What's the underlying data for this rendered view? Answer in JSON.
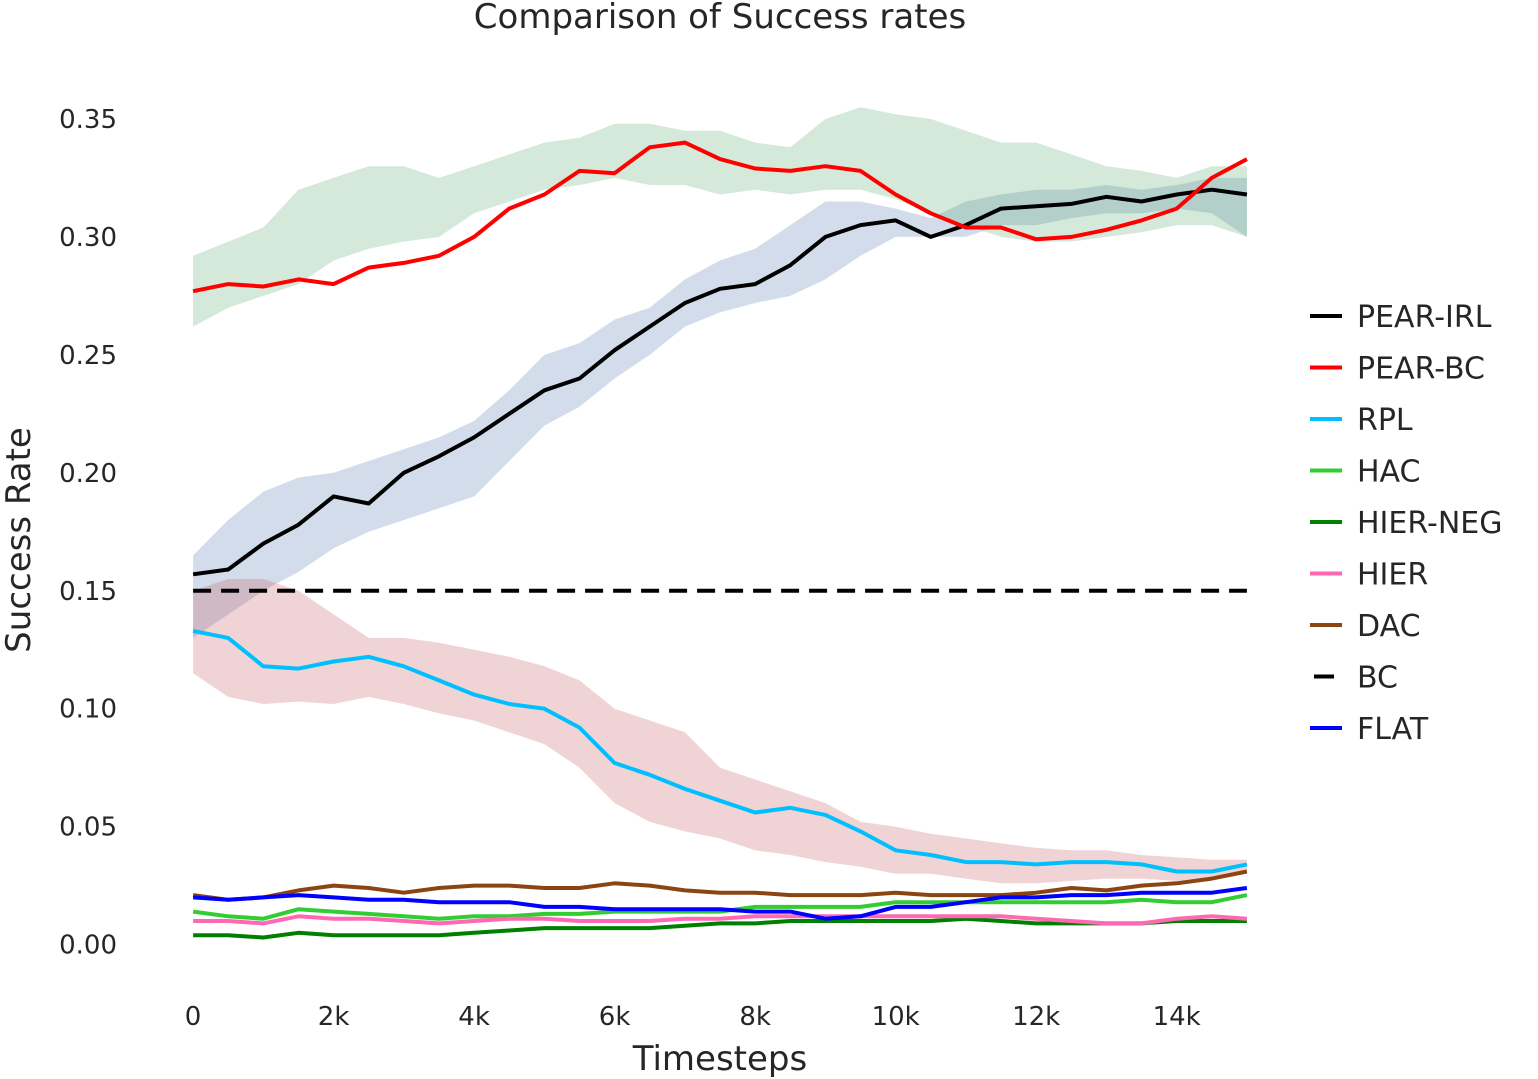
{
  "chart_data": {
    "type": "line",
    "title": "Comparison of Success rates",
    "xlabel": "Timesteps",
    "ylabel": "Success Rate",
    "xlim": [
      -300,
      15300
    ],
    "ylim": [
      -0.015,
      0.375
    ],
    "xticks": [
      0,
      2000,
      4000,
      6000,
      8000,
      10000,
      12000,
      14000
    ],
    "xtick_labels": [
      "0",
      "2k",
      "4k",
      "6k",
      "8k",
      "10k",
      "12k",
      "14k"
    ],
    "yticks": [
      0.0,
      0.05,
      0.1,
      0.15,
      0.2,
      0.25,
      0.3,
      0.35
    ],
    "ytick_labels": [
      "0.00",
      "0.05",
      "0.10",
      "0.15",
      "0.20",
      "0.25",
      "0.30",
      "0.35"
    ],
    "grid": false,
    "legend_position": "right",
    "x": [
      0,
      500,
      1000,
      1500,
      2000,
      2500,
      3000,
      3500,
      4000,
      4500,
      5000,
      5500,
      6000,
      6500,
      7000,
      7500,
      8000,
      8500,
      9000,
      9500,
      10000,
      10500,
      11000,
      11500,
      12000,
      12500,
      13000,
      13500,
      14000,
      14500,
      15000
    ],
    "series": [
      {
        "name": "PEAR-IRL",
        "color": "#000000",
        "dash": false,
        "values": [
          0.157,
          0.159,
          0.17,
          0.178,
          0.19,
          0.187,
          0.2,
          0.207,
          0.215,
          0.225,
          0.235,
          0.24,
          0.252,
          0.262,
          0.272,
          0.278,
          0.28,
          0.288,
          0.3,
          0.305,
          0.307,
          0.3,
          0.305,
          0.312,
          0.313,
          0.314,
          0.317,
          0.315,
          0.318,
          0.32,
          0.318
        ],
        "band": {
          "color": "#4c72b0",
          "upper": [
            0.165,
            0.18,
            0.192,
            0.198,
            0.2,
            0.205,
            0.21,
            0.215,
            0.222,
            0.235,
            0.25,
            0.255,
            0.265,
            0.27,
            0.282,
            0.29,
            0.295,
            0.305,
            0.315,
            0.315,
            0.312,
            0.308,
            0.315,
            0.318,
            0.32,
            0.32,
            0.322,
            0.32,
            0.322,
            0.325,
            0.325
          ],
          "lower": [
            0.13,
            0.14,
            0.15,
            0.158,
            0.168,
            0.175,
            0.18,
            0.185,
            0.19,
            0.205,
            0.22,
            0.228,
            0.24,
            0.25,
            0.262,
            0.268,
            0.272,
            0.275,
            0.282,
            0.292,
            0.3,
            0.3,
            0.3,
            0.305,
            0.305,
            0.308,
            0.31,
            0.31,
            0.312,
            0.31,
            0.3
          ]
        }
      },
      {
        "name": "PEAR-BC",
        "color": "#ff0000",
        "dash": false,
        "values": [
          0.277,
          0.28,
          0.279,
          0.282,
          0.28,
          0.287,
          0.289,
          0.292,
          0.3,
          0.312,
          0.318,
          0.328,
          0.327,
          0.338,
          0.34,
          0.333,
          0.329,
          0.328,
          0.33,
          0.328,
          0.318,
          0.31,
          0.304,
          0.304,
          0.299,
          0.3,
          0.303,
          0.307,
          0.312,
          0.325,
          0.333
        ],
        "band": {
          "color": "#55a868",
          "upper": [
            0.292,
            0.298,
            0.304,
            0.32,
            0.325,
            0.33,
            0.33,
            0.325,
            0.33,
            0.335,
            0.34,
            0.342,
            0.348,
            0.348,
            0.345,
            0.345,
            0.34,
            0.338,
            0.35,
            0.355,
            0.352,
            0.35,
            0.345,
            0.34,
            0.34,
            0.335,
            0.33,
            0.328,
            0.325,
            0.33,
            0.33
          ],
          "lower": [
            0.262,
            0.27,
            0.275,
            0.28,
            0.29,
            0.295,
            0.298,
            0.3,
            0.31,
            0.315,
            0.32,
            0.322,
            0.325,
            0.322,
            0.322,
            0.318,
            0.32,
            0.318,
            0.32,
            0.32,
            0.316,
            0.31,
            0.305,
            0.3,
            0.298,
            0.298,
            0.3,
            0.302,
            0.305,
            0.305,
            0.3
          ]
        }
      },
      {
        "name": "RPL",
        "color": "#00bfff",
        "dash": false,
        "values": [
          0.133,
          0.13,
          0.118,
          0.117,
          0.12,
          0.122,
          0.118,
          0.112,
          0.106,
          0.102,
          0.1,
          0.092,
          0.077,
          0.072,
          0.066,
          0.061,
          0.056,
          0.058,
          0.055,
          0.048,
          0.04,
          0.038,
          0.035,
          0.035,
          0.034,
          0.035,
          0.035,
          0.034,
          0.031,
          0.031,
          0.034
        ],
        "band": {
          "color": "#c44e52",
          "upper": [
            0.15,
            0.155,
            0.155,
            0.15,
            0.14,
            0.13,
            0.13,
            0.128,
            0.125,
            0.122,
            0.118,
            0.112,
            0.1,
            0.095,
            0.09,
            0.075,
            0.07,
            0.065,
            0.06,
            0.052,
            0.05,
            0.047,
            0.045,
            0.043,
            0.041,
            0.04,
            0.04,
            0.038,
            0.037,
            0.036,
            0.036
          ],
          "lower": [
            0.115,
            0.105,
            0.102,
            0.103,
            0.102,
            0.105,
            0.102,
            0.098,
            0.095,
            0.09,
            0.085,
            0.075,
            0.06,
            0.052,
            0.048,
            0.045,
            0.04,
            0.038,
            0.035,
            0.033,
            0.03,
            0.03,
            0.028,
            0.026,
            0.026,
            0.027,
            0.028,
            0.028,
            0.027,
            0.028,
            0.03
          ]
        }
      },
      {
        "name": "HAC",
        "color": "#32cd32",
        "dash": false,
        "values": [
          0.014,
          0.012,
          0.011,
          0.015,
          0.014,
          0.013,
          0.012,
          0.011,
          0.012,
          0.012,
          0.013,
          0.013,
          0.014,
          0.014,
          0.014,
          0.014,
          0.016,
          0.016,
          0.016,
          0.016,
          0.018,
          0.018,
          0.018,
          0.018,
          0.018,
          0.018,
          0.018,
          0.019,
          0.018,
          0.018,
          0.021
        ]
      },
      {
        "name": "HIER-NEG",
        "color": "#008000",
        "dash": false,
        "values": [
          0.004,
          0.004,
          0.003,
          0.005,
          0.004,
          0.004,
          0.004,
          0.004,
          0.005,
          0.006,
          0.007,
          0.007,
          0.007,
          0.007,
          0.008,
          0.009,
          0.009,
          0.01,
          0.01,
          0.01,
          0.01,
          0.01,
          0.011,
          0.01,
          0.009,
          0.009,
          0.009,
          0.009,
          0.01,
          0.01,
          0.01
        ]
      },
      {
        "name": "HIER",
        "color": "#ff69b4",
        "dash": false,
        "values": [
          0.01,
          0.01,
          0.009,
          0.012,
          0.011,
          0.011,
          0.01,
          0.009,
          0.01,
          0.011,
          0.011,
          0.01,
          0.01,
          0.01,
          0.011,
          0.011,
          0.012,
          0.012,
          0.012,
          0.012,
          0.012,
          0.012,
          0.012,
          0.012,
          0.011,
          0.01,
          0.009,
          0.009,
          0.011,
          0.012,
          0.011
        ]
      },
      {
        "name": "DAC",
        "color": "#8b4513",
        "dash": false,
        "values": [
          0.021,
          0.019,
          0.02,
          0.023,
          0.025,
          0.024,
          0.022,
          0.024,
          0.025,
          0.025,
          0.024,
          0.024,
          0.026,
          0.025,
          0.023,
          0.022,
          0.022,
          0.021,
          0.021,
          0.021,
          0.022,
          0.021,
          0.021,
          0.021,
          0.022,
          0.024,
          0.023,
          0.025,
          0.026,
          0.028,
          0.031
        ]
      },
      {
        "name": "BC",
        "color": "#000000",
        "dash": true,
        "values": [
          0.15,
          0.15,
          0.15,
          0.15,
          0.15,
          0.15,
          0.15,
          0.15,
          0.15,
          0.15,
          0.15,
          0.15,
          0.15,
          0.15,
          0.15,
          0.15,
          0.15,
          0.15,
          0.15,
          0.15,
          0.15,
          0.15,
          0.15,
          0.15,
          0.15,
          0.15,
          0.15,
          0.15,
          0.15,
          0.15,
          0.15
        ]
      },
      {
        "name": "FLAT",
        "color": "#0000ff",
        "dash": false,
        "values": [
          0.02,
          0.019,
          0.02,
          0.021,
          0.02,
          0.019,
          0.019,
          0.018,
          0.018,
          0.018,
          0.016,
          0.016,
          0.015,
          0.015,
          0.015,
          0.015,
          0.014,
          0.014,
          0.011,
          0.012,
          0.016,
          0.016,
          0.018,
          0.02,
          0.02,
          0.021,
          0.021,
          0.022,
          0.022,
          0.022,
          0.024
        ]
      }
    ]
  }
}
